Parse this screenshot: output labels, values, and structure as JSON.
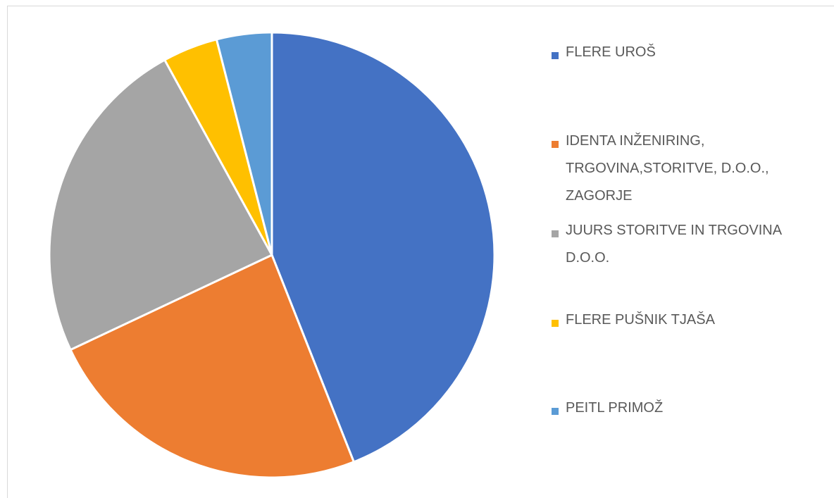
{
  "chart_data": {
    "type": "pie",
    "categories": [
      "FLERE UROŠ",
      "IDENTA INŽENIRING, TRGOVINA,STORITVE, D.O.O., ZAGORJE",
      "JUURS STORITVE IN TRGOVINA D.O.O.",
      "FLERE PUŠNIK TJAŠA",
      "PEITL PRIMOŽ"
    ],
    "values": [
      44,
      24,
      24,
      4,
      4
    ],
    "colors": [
      "#4472c4",
      "#ed7d31",
      "#a5a5a5",
      "#ffc000",
      "#5b9bd5"
    ]
  }
}
